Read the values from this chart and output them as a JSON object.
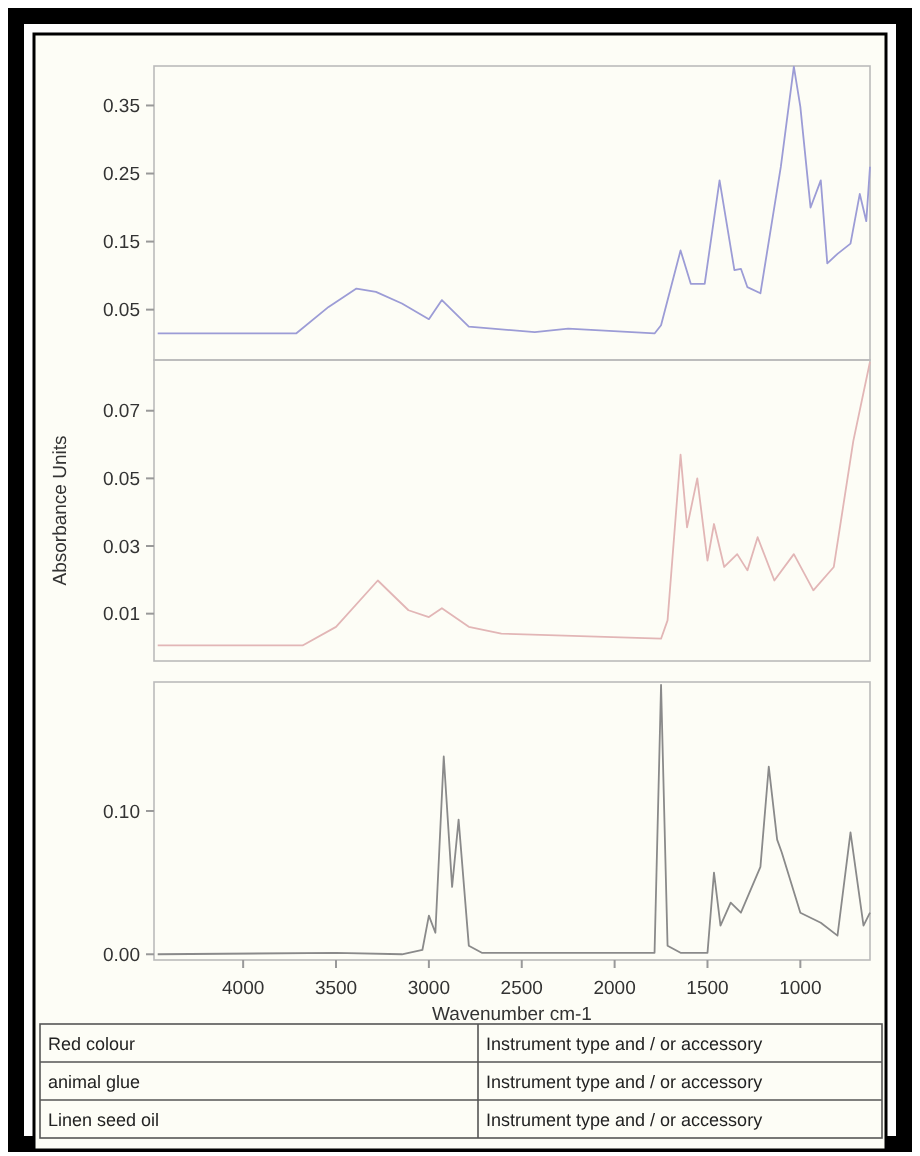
{
  "chart_data": [
    {
      "type": "line",
      "xlim": [
        4480,
        625
      ],
      "ylim": [
        -0.024,
        0.408
      ],
      "yticks": [
        0.05,
        0.15,
        0.25,
        0.35
      ],
      "tick_labels": "y",
      "x": [
        4460,
        3715,
        3540,
        3390,
        3285,
        3145,
        3000,
        2930,
        2785,
        2430,
        2250,
        1785,
        1750,
        1645,
        1590,
        1515,
        1435,
        1355,
        1320,
        1285,
        1215,
        1105,
        1035,
        1000,
        945,
        890,
        855,
        800,
        730,
        680,
        645,
        625
      ],
      "series": [
        {
          "color": "#9c9cd6",
          "values": [
            0.015,
            0.015,
            0.054,
            0.081,
            0.076,
            0.059,
            0.036,
            0.064,
            0.025,
            0.017,
            0.022,
            0.015,
            0.027,
            0.137,
            0.088,
            0.088,
            0.24,
            0.108,
            0.11,
            0.083,
            0.074,
            0.26,
            0.407,
            0.348,
            0.2,
            0.24,
            0.118,
            0.132,
            0.147,
            0.22,
            0.18,
            0.26
          ]
        }
      ]
    },
    {
      "type": "line",
      "xlim": [
        4480,
        625
      ],
      "ylim": [
        -0.004,
        0.085
      ],
      "yticks": [
        0.01,
        0.03,
        0.05,
        0.07
      ],
      "tick_labels": "y",
      "ylabel": "Absorbance Units",
      "x": [
        4460,
        3680,
        3500,
        3275,
        3110,
        3000,
        2930,
        2785,
        2610,
        1750,
        1715,
        1645,
        1610,
        1555,
        1500,
        1465,
        1410,
        1340,
        1285,
        1230,
        1140,
        1035,
        930,
        820,
        715,
        625
      ],
      "series": [
        {
          "color": "#e2b6b6",
          "values": [
            0.0006,
            0.0006,
            0.0061,
            0.0198,
            0.011,
            0.009,
            0.0116,
            0.0061,
            0.0041,
            0.0026,
            0.008,
            0.057,
            0.0355,
            0.05,
            0.0257,
            0.0365,
            0.0238,
            0.0276,
            0.0228,
            0.0326,
            0.0198,
            0.0276,
            0.0169,
            0.0238,
            0.061,
            0.0845
          ]
        }
      ]
    },
    {
      "type": "line",
      "xlim": [
        4480,
        625
      ],
      "ylim": [
        -0.004,
        0.19
      ],
      "yticks": [
        {
          "value": 0,
          "label": "0.00"
        },
        {
          "value": 0.1,
          "label": "0.10"
        }
      ],
      "xticks": [
        4000,
        3500,
        3000,
        2500,
        2000,
        1500,
        1000
      ],
      "xlabel": "Wavenumber cm-1",
      "annotations": [
        "Red colour",
        "Instrument type and / or accessory",
        "animal glue",
        "Instrument type and / or accessory",
        "Linen seed oil",
        "Instrument type and / or accessory"
      ],
      "x": [
        4460,
        3500,
        3145,
        3035,
        3000,
        2965,
        2920,
        2875,
        2840,
        2785,
        2715,
        1785,
        1750,
        1715,
        1645,
        1500,
        1465,
        1430,
        1375,
        1320,
        1215,
        1170,
        1125,
        1100,
        1000,
        890,
        800,
        730,
        660,
        625
      ],
      "series": [
        {
          "color": "#8a8a8a",
          "values": [
            0,
            0.001,
            0,
            0.003,
            0.027,
            0.015,
            0.138,
            0.047,
            0.094,
            0.006,
            0.001,
            0.001,
            0.188,
            0.006,
            0.001,
            0.001,
            0.057,
            0.02,
            0.036,
            0.029,
            0.061,
            0.131,
            0.08,
            0.071,
            0.029,
            0.022,
            0.013,
            0.085,
            0.02,
            0.029
          ]
        }
      ]
    }
  ]
}
